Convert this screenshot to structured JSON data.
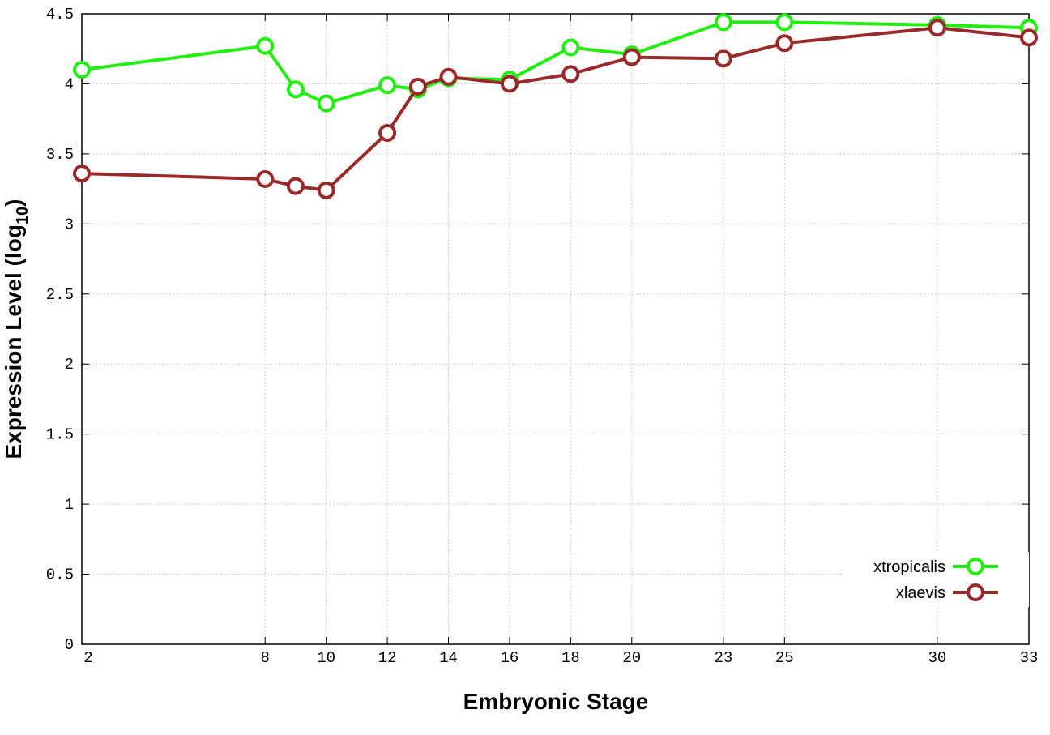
{
  "chart_data": {
    "type": "line",
    "x_label": "Embryonic Stage",
    "y_label": "Expression Level (log",
    "y_label_subscript": "10",
    "y_label_suffix": ")",
    "x": [
      2,
      8,
      9,
      10,
      12,
      13,
      14,
      16,
      18,
      20,
      23,
      25,
      30,
      33
    ],
    "series": [
      {
        "name": "xtropicalis",
        "color": "#22ee11",
        "values": [
          4.1,
          4.27,
          3.96,
          3.86,
          3.99,
          3.96,
          4.04,
          4.03,
          4.26,
          4.21,
          4.44,
          4.44,
          4.42,
          4.4
        ]
      },
      {
        "name": "xlaevis",
        "color": "#9a2a2a",
        "values": [
          3.36,
          3.32,
          3.27,
          3.24,
          3.65,
          3.98,
          4.05,
          4.0,
          4.07,
          4.19,
          4.18,
          4.29,
          4.4,
          4.33
        ]
      }
    ],
    "xlim": [
      2,
      33
    ],
    "xticks": [
      2,
      8,
      10,
      12,
      14,
      16,
      18,
      20,
      23,
      25,
      30,
      33
    ],
    "ylim": [
      0,
      4.5
    ],
    "yticks": [
      0,
      0.5,
      1,
      1.5,
      2,
      2.5,
      3,
      3.5,
      4,
      4.5
    ],
    "grid": true,
    "legend": "lower right"
  }
}
